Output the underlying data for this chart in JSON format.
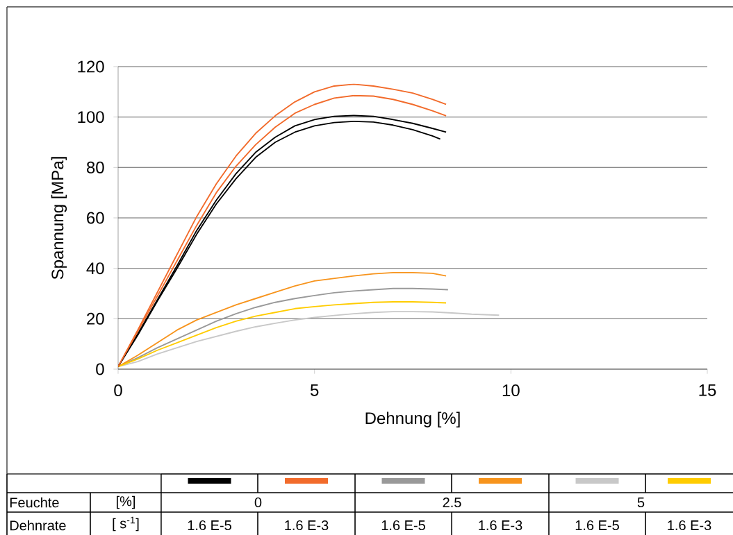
{
  "chart_data": {
    "type": "line",
    "xlabel": "Dehnung [%]",
    "ylabel": "Spannung [MPa]",
    "xlim": [
      0,
      15
    ],
    "ylim": [
      0,
      120
    ],
    "xticks": [
      0,
      5,
      10,
      15
    ],
    "yticks": [
      0,
      20,
      40,
      60,
      80,
      100,
      120
    ],
    "grid": "y",
    "line_style": "solid",
    "series": [
      {
        "color": "#000000",
        "x": [
          0,
          0.5,
          1,
          1.5,
          2,
          2.5,
          3,
          3.5,
          4,
          4.5,
          5,
          5.5,
          6,
          6.5,
          7,
          7.5,
          8,
          8.35
        ],
        "values": [
          1,
          14,
          27.5,
          41,
          55,
          67,
          77.5,
          86,
          92,
          96.5,
          99,
          100.3,
          100.6,
          100.3,
          99,
          97.5,
          95.5,
          94
        ]
      },
      {
        "color": "#f26b2b",
        "x": [
          0,
          0.5,
          1,
          1.5,
          2,
          2.5,
          3,
          3.5,
          4,
          4.5,
          5,
          5.5,
          6,
          6.5,
          7,
          7.5,
          8,
          8.35
        ],
        "values": [
          1,
          15.5,
          30.5,
          45.5,
          60.5,
          73.5,
          84.5,
          93.5,
          100.5,
          106,
          110,
          112.3,
          113,
          112.3,
          111,
          109.5,
          107,
          105
        ]
      },
      {
        "color": "#999999",
        "x": [
          0,
          0.5,
          1,
          1.5,
          2,
          2.5,
          3,
          3.5,
          4,
          4.5,
          5,
          5.5,
          6,
          6.5,
          7,
          7.5,
          8,
          8.4
        ],
        "values": [
          1,
          4.5,
          8.5,
          12,
          15.5,
          19,
          22,
          24.5,
          26.5,
          28,
          29.2,
          30.3,
          31,
          31.5,
          32,
          32,
          31.8,
          31.5
        ]
      },
      {
        "color": "#f7941d",
        "x": [
          0,
          0.5,
          1,
          1.5,
          2,
          2.5,
          3,
          3.5,
          4,
          4.5,
          5,
          5.5,
          6,
          6.5,
          7,
          7.5,
          8,
          8.35
        ],
        "values": [
          1,
          5.5,
          10.5,
          15.5,
          19.5,
          22.5,
          25.5,
          28,
          30.5,
          33,
          35,
          36,
          37,
          37.8,
          38.3,
          38.3,
          38,
          37
        ]
      },
      {
        "color": "#c8c8c8",
        "x": [
          0,
          0.5,
          1,
          1.5,
          2,
          2.5,
          3,
          3.5,
          4,
          4.5,
          5,
          5.5,
          6,
          6.5,
          7,
          7.5,
          8,
          8.5,
          9,
          9.7
        ],
        "values": [
          1,
          3,
          6,
          8.5,
          11,
          13,
          15,
          16.8,
          18.2,
          19.5,
          20.5,
          21.3,
          22,
          22.5,
          22.8,
          22.8,
          22.7,
          22.3,
          21.8,
          21.4
        ]
      },
      {
        "color": "#ffcc00",
        "x": [
          0,
          0.5,
          1,
          1.5,
          2,
          2.5,
          3,
          3.5,
          4,
          4.5,
          5,
          5.5,
          6,
          6.5,
          7,
          7.5,
          8,
          8.35
        ],
        "values": [
          1,
          4,
          7.5,
          10.5,
          13.5,
          16.5,
          19,
          21,
          22.5,
          24,
          24.8,
          25.5,
          26,
          26.5,
          26.7,
          26.7,
          26.5,
          26.3
        ]
      },
      {
        "color": "#000000",
        "x": [
          0,
          0.5,
          1,
          1.5,
          2,
          2.5,
          3,
          3.5,
          4,
          4.5,
          5,
          5.5,
          6,
          6.5,
          7,
          7.5,
          8,
          8.2
        ],
        "values": [
          1,
          13.5,
          27,
          40,
          53.5,
          65.5,
          75.5,
          84,
          90,
          94,
          96.5,
          97.8,
          98.3,
          98,
          96.8,
          95,
          92.5,
          91.3
        ]
      },
      {
        "color": "#f26b2b",
        "x": [
          0,
          0.5,
          1,
          1.5,
          2,
          2.5,
          3,
          3.5,
          4,
          4.5,
          5,
          5.5,
          6,
          6.5,
          7,
          7.5,
          8,
          8.35
        ],
        "values": [
          1,
          15,
          29,
          43,
          57,
          70,
          80.5,
          89,
          96,
          101.5,
          105,
          107.5,
          108.5,
          108.3,
          107,
          105,
          102.5,
          100.5
        ]
      }
    ],
    "annotations": [
      "Feuchte",
      "[%]",
      "0",
      "2.5",
      "5",
      "Dehnrate",
      "[ s$^{-1}$]",
      "1.6 E-5",
      "1.6 E-3",
      "1.6 E-5",
      "1.6 E-3",
      "1.6 E-5",
      "1.6 E-3"
    ]
  }
}
